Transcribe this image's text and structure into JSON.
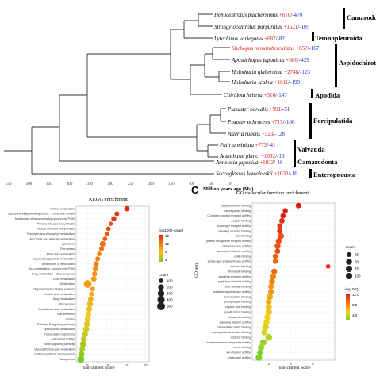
{
  "tree": {
    "leaves": [
      {
        "name": "Hemicentrotus pulcherrimus",
        "plus": "+810",
        "minus": "-470",
        "highlight": false
      },
      {
        "name": "Strongylocentrotus purpuratus",
        "plus": "+1621",
        "minus": "-105",
        "highlight": false
      },
      {
        "name": "Lytechinus variegatus",
        "plus": "+687",
        "minus": "-82",
        "highlight": false
      },
      {
        "name": "Stichopus monotuberculatus",
        "plus": "+857",
        "minus": "-167",
        "highlight": true
      },
      {
        "name": "Apostichopus japonicus",
        "plus": "+886",
        "minus": "-429",
        "highlight": false
      },
      {
        "name": "Holothuria glaberrima",
        "plus": "+2748",
        "minus": "-123",
        "highlight": false
      },
      {
        "name": "Holothuria scabra",
        "plus": "+1011",
        "minus": "-199",
        "highlight": false
      },
      {
        "name": "Chiridota heheva",
        "plus": "+316",
        "minus": "-147",
        "highlight": false
      },
      {
        "name": "Plazaster borealis",
        "plus": "+991",
        "minus": "-51",
        "highlight": false
      },
      {
        "name": "Pisaster ochraceus",
        "plus": "+715",
        "minus": "-186",
        "highlight": false
      },
      {
        "name": "Asteria rubens",
        "plus": "+523",
        "minus": "-128",
        "highlight": false
      },
      {
        "name": "Patiria miniata",
        "plus": "+773",
        "minus": "-41",
        "highlight": false
      },
      {
        "name": "Acanthaste planci",
        "plus": "+1032",
        "minus": "-16",
        "highlight": false
      },
      {
        "name": "Anneissia japonica",
        "plus": "+1032",
        "minus": "-16",
        "highlight": false
      },
      {
        "name": "Saccoglossus kowalevskii",
        "plus": "+1032",
        "minus": "-16",
        "highlight": false
      }
    ],
    "groups": [
      "Camarodont",
      "Temnopleuroida",
      "Aspidochirotida",
      "Apodida",
      "Forcipulatida",
      "Valvatida",
      "Camarodonta",
      "Enteropneusta"
    ],
    "axis_ticks": [
      "550",
      "500",
      "450",
      "400",
      "350",
      "300",
      "250",
      "200",
      "150",
      "100",
      "50",
      "0"
    ],
    "axis_label": "Million years ago (Ma)"
  },
  "kegg": {
    "title": "KEGG enrichment",
    "xlabel": "Enrichment Score",
    "xticks": [
      "5",
      "10",
      "15",
      "20"
    ],
    "categories": [
      "Retinol metabolism",
      "Glycosaminoglycan biosynthesis - chondroitin sulfate",
      "Metabolism of xenobiotics by cytochrome P450",
      "Primary bile acid biosynthesis",
      "Steroid hormone biosynthesis",
      "Porphyrin and chlorophyll metabolism",
      "Ascorbate and aldarate metabolism",
      "Lysosome",
      "Ferroptosis",
      "Ether lipid metabolism",
      "Glycerophospholipid metabolism",
      "Metabolism of xenobiotics",
      "Drug metabolism - cytochrome P450",
      "Drug metabolism - other enzymes",
      "Lipid metabolism",
      "Metabolism",
      "Oligosaccharide binding proteins",
      "Linoleic acid metabolism",
      "Drug metabolism",
      "Peroxisome",
      "Arachidonic acid metabolism",
      "Bile secretion",
      "Lectins",
      "NF-kappa B signaling pathway",
      "Sphingolipid metabolism",
      "Transcription machinery",
      "Antioxidant activity",
      "Notch signaling pathway",
      "Glycosyltransferase metabolism",
      "Cortisol synthesis and secretion",
      "Transporters"
    ],
    "legend_q_title": "-log10(Q-value)",
    "legend_q_ticks": [
      "16",
      "12",
      "8",
      "4"
    ],
    "legend_count_title": "Count",
    "legend_count_values": [
      "100",
      "200",
      "300",
      "400",
      "500"
    ]
  },
  "go": {
    "panel_label": "C",
    "title": "GO molecular function enrichment",
    "xlabel": "Enrichment Score",
    "ylabel": "GO term",
    "xticks": [
      "2",
      "4",
      "6"
    ],
    "categories": [
      "polysaccharide binding",
      "carbohydrate binding",
      "G-protein coupled receptor activity",
      "peptide binding",
      "scavenger receptor activity",
      "signaling receptor binding",
      "lipid binding",
      "pattern recognition receptor activity",
      "oxidoreductase activity",
      "structural molecule activity",
      "chitin binding",
      "serine-type endopeptidase activity",
      "cytokine binding",
      "fibronectin binding",
      "signaling receptor activity",
      "peptidase inhibitor activity",
      "SH2 domain binding",
      "metalloendopeptidase activity",
      "carbohydrate binding",
      "phospholipid binding",
      "organic acid binding",
      "growth factor binding",
      "transporter activity",
      "signaling adaptor activity",
      "extracellular matrix binding",
      "carbohydrate derivative binding",
      "cofactor binding",
      "transmembrane transporter activity",
      "heme binding",
      "ion channel activity",
      "hydrolase activity"
    ],
    "legend_count_title": "Count",
    "legend_count_values": [
      "25",
      "50",
      "75",
      "100"
    ],
    "legend_q_title": "-log10(Q)",
    "legend_q_ticks": [
      "12.0",
      "8.0",
      "4.0"
    ]
  },
  "chart_data": [
    {
      "type": "scatter",
      "title": "KEGG enrichment",
      "xlabel": "Enrichment Score",
      "x": [
        15.2,
        12.6,
        11.8,
        11.0,
        10.4,
        10.0,
        9.5,
        8.9,
        8.6,
        8.0,
        7.6,
        7.2,
        7.0,
        6.8,
        6.6,
        5.0,
        6.3,
        6.0,
        5.8,
        5.6,
        5.4,
        5.2,
        5.0,
        4.8,
        4.6,
        4.3,
        4.0,
        3.8,
        3.6,
        3.4,
        3.2
      ],
      "q": [
        17,
        16,
        16,
        15,
        15,
        14,
        14,
        13,
        13,
        12,
        12,
        12,
        11,
        11,
        10,
        10,
        10,
        9,
        9,
        8,
        8,
        7,
        7,
        6,
        6,
        5,
        5,
        4,
        4,
        3,
        2
      ],
      "count": [
        160,
        120,
        140,
        80,
        100,
        110,
        90,
        200,
        120,
        100,
        130,
        150,
        170,
        140,
        180,
        480,
        110,
        120,
        160,
        220,
        200,
        180,
        210,
        230,
        240,
        200,
        220,
        250,
        180,
        230,
        350
      ]
    },
    {
      "type": "scatter",
      "title": "GO molecular function enrichment",
      "xlabel": "Enrichment Score",
      "ylabel": "GO term",
      "x": [
        4.7,
        3.5,
        3.3,
        3.2,
        3.0,
        3.0,
        3.1,
        2.9,
        2.8,
        2.8,
        2.6,
        2.6,
        7.4,
        2.5,
        2.4,
        2.3,
        2.2,
        2.2,
        2.1,
        2.0,
        2.0,
        2.0,
        1.9,
        1.8,
        1.7,
        1.6,
        2.0,
        1.5,
        1.3,
        1.2,
        1.1
      ],
      "q": [
        13,
        13,
        13,
        12,
        12,
        12,
        11,
        11,
        11,
        11,
        10,
        10,
        12,
        10,
        9,
        9,
        8,
        8,
        7,
        7,
        6,
        6,
        5,
        5,
        4,
        4,
        3,
        2,
        2,
        1,
        1
      ],
      "count": [
        40,
        30,
        35,
        40,
        30,
        35,
        60,
        45,
        50,
        40,
        35,
        30,
        20,
        45,
        50,
        55,
        40,
        45,
        60,
        50,
        55,
        65,
        70,
        55,
        60,
        50,
        80,
        70,
        60,
        40,
        65
      ]
    }
  ]
}
